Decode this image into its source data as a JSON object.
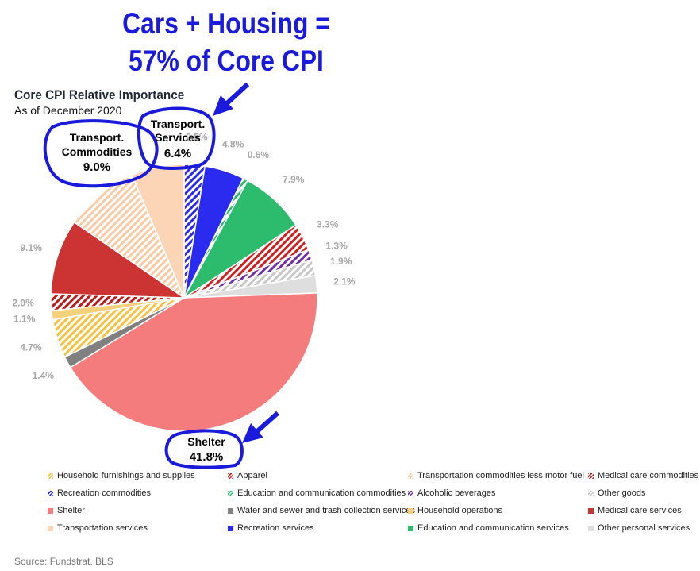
{
  "headline": {
    "line1": "Cars + Housing =",
    "line2": "57% of Core CPI"
  },
  "source": "Source: Fundstrat, BLS",
  "callouts": {
    "transport_commodities": {
      "line1": "Transport.",
      "line2": "Commodities",
      "value": "9.0%"
    },
    "transport_services": {
      "line1": "Transport.",
      "line2": "Services",
      "value": "6.4%"
    },
    "shelter": {
      "line1": "Shelter",
      "value": "41.8%"
    }
  },
  "colors": {
    "headline": "#1a1adb",
    "callout_outline": "#1a1adb",
    "arrow": "#1a1adb",
    "data_label": "#a6a6a6"
  },
  "chart_data": {
    "type": "pie",
    "title": "Core CPI Relative Importance",
    "subtitle": "As of December 2020",
    "unit": "%",
    "start": "12 o'clock, clockwise",
    "slices": [
      {
        "name": "Recreation commodities",
        "value": 2.5,
        "label": "2.5%",
        "color": "#2b2bf0",
        "hatched": true
      },
      {
        "name": "Recreation services",
        "value": 4.8,
        "label": "4.8%",
        "color": "#2b2bf0",
        "hatched": false
      },
      {
        "name": "Education and communication commodities",
        "value": 0.6,
        "label": "0.6%",
        "color": "#2dbb6e",
        "hatched": true
      },
      {
        "name": "Education and communication services",
        "value": 7.9,
        "label": "7.9%",
        "color": "#2dbb6e",
        "hatched": false
      },
      {
        "name": "Apparel",
        "value": 3.3,
        "label": "3.3%",
        "color": "#d11f1f",
        "hatched": true
      },
      {
        "name": "Alcoholic beverages",
        "value": 1.3,
        "label": "1.3%",
        "color": "#7030a0",
        "hatched": true
      },
      {
        "name": "Other goods",
        "value": 1.9,
        "label": "1.9%",
        "color": "#c8c8c8",
        "hatched": true
      },
      {
        "name": "Other personal services",
        "value": 2.1,
        "label": "2.1%",
        "color": "#dedede",
        "hatched": false
      },
      {
        "name": "Shelter",
        "value": 41.8,
        "label": "",
        "color": "#f47c7c",
        "hatched": false
      },
      {
        "name": "Water and sewer and trash collection services",
        "value": 1.4,
        "label": "1.4%",
        "color": "#808080",
        "hatched": false
      },
      {
        "name": "Household furnishings and supplies",
        "value": 4.7,
        "label": "4.7%",
        "color": "#f5c242",
        "hatched": true
      },
      {
        "name": "Household operations",
        "value": 1.1,
        "label": "1.1%",
        "color": "#f7d27a",
        "hatched": false
      },
      {
        "name": "Medical care commodities",
        "value": 2.0,
        "label": "2.0%",
        "color": "#b81d1d",
        "hatched": true
      },
      {
        "name": "Medical care services",
        "value": 9.1,
        "label": "9.1%",
        "color": "#cc3333",
        "hatched": false
      },
      {
        "name": "Transportation commodities less motor fuel",
        "value": 9.0,
        "label": "",
        "color": "#f8cba5",
        "hatched": true
      },
      {
        "name": "Transportation services",
        "value": 6.4,
        "label": "",
        "color": "#fbd5b5",
        "hatched": false
      }
    ],
    "legend": [
      {
        "name": "Household furnishings and supplies",
        "color": "#f5c242",
        "hatched": true
      },
      {
        "name": "Apparel",
        "color": "#d11f1f",
        "hatched": true
      },
      {
        "name": "Transportation commodities less motor fuel",
        "color": "#f8cba5",
        "hatched": true
      },
      {
        "name": "Medical care commodities",
        "color": "#b81d1d",
        "hatched": true
      },
      {
        "name": "Recreation commodities",
        "color": "#2b2bf0",
        "hatched": true
      },
      {
        "name": "Education and communication commodities",
        "color": "#2dbb6e",
        "hatched": true
      },
      {
        "name": "Alcoholic beverages",
        "color": "#7030a0",
        "hatched": true
      },
      {
        "name": "Other goods",
        "color": "#c8c8c8",
        "hatched": true
      },
      {
        "name": "Shelter",
        "color": "#f47c7c",
        "hatched": false
      },
      {
        "name": "Water and sewer and trash collection services",
        "color": "#808080",
        "hatched": false
      },
      {
        "name": "Household operations",
        "color": "#f7d27a",
        "hatched": false
      },
      {
        "name": "Medical care services",
        "color": "#cc3333",
        "hatched": false
      },
      {
        "name": "Transportation services",
        "color": "#fbd5b5",
        "hatched": false
      },
      {
        "name": "Recreation services",
        "color": "#2b2bf0",
        "hatched": false
      },
      {
        "name": "Education and communication services",
        "color": "#2dbb6e",
        "hatched": false
      },
      {
        "name": "Other personal services",
        "color": "#dedede",
        "hatched": false
      }
    ]
  }
}
